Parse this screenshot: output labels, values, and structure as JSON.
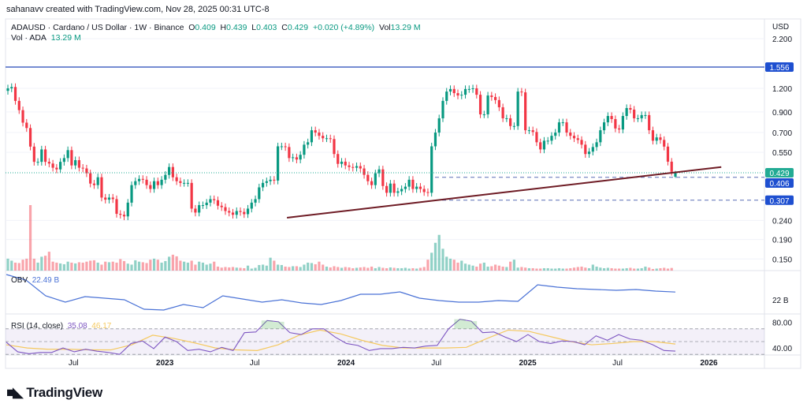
{
  "credit": "sahanavv created with TradingView.com, Nov 28, 2025 00:31 UTC-8",
  "legend": {
    "symbol": "ADAUSD · Cardano / US Dollar · 1W · Binance",
    "o_label": "O",
    "o": "0.409",
    "h_label": "H",
    "h": "0.439",
    "l_label": "L",
    "l": "0.403",
    "c_label": "C",
    "c": "0.429",
    "change": "+0.020 (+4.89%)",
    "vol_label": "Vol",
    "vol": "13.29 M",
    "vol_series_label": "Vol · ADA",
    "vol_series_value": "13.29 M"
  },
  "obv": {
    "label": "OBV",
    "value": "22.49 B",
    "axis_tick": "22 B"
  },
  "rsi": {
    "label": "RSI (14, close)",
    "value": "35.08",
    "ma_value": "46.17",
    "ticks": [
      "80.00",
      "40.00"
    ]
  },
  "currency": "USD",
  "logo": "TradingView",
  "colors": {
    "up": "#089981",
    "down": "#f23645",
    "obv": "#4a72d6",
    "rsi": "#7e57c2",
    "rsi_ma": "#f5c960",
    "hline": "#2448b8",
    "trendline": "#6e1b24",
    "last_price": "#22ab94"
  },
  "chart_data": {
    "type": "candlestick",
    "interval": "1W",
    "scale": "log",
    "ylim": [
      0.13,
      2.4
    ],
    "price_ticks": [
      "2.200",
      "1.200",
      "0.900",
      "0.700",
      "0.550",
      "0.240",
      "0.190",
      "0.150"
    ],
    "time_ticks": [
      {
        "label": "Jul",
        "date": "2022-07-01",
        "bold": false
      },
      {
        "label": "2023",
        "date": "2023-01-01",
        "bold": true
      },
      {
        "label": "Jul",
        "date": "2023-07-01",
        "bold": false
      },
      {
        "label": "2024",
        "date": "2024-01-01",
        "bold": true
      },
      {
        "label": "Jul",
        "date": "2024-07-01",
        "bold": false
      },
      {
        "label": "2025",
        "date": "2025-01-01",
        "bold": true
      },
      {
        "label": "Jul",
        "date": "2025-07-01",
        "bold": false
      },
      {
        "label": "2026",
        "date": "2026-01-01",
        "bold": true
      }
    ],
    "x_range": [
      "2022-02-14",
      "2026-02-28"
    ],
    "last_candle": {
      "open": 0.409,
      "high": 0.439,
      "low": 0.403,
      "close": 0.429
    },
    "closes": [
      1.2,
      1.22,
      1.03,
      0.92,
      0.79,
      0.74,
      0.59,
      0.49,
      0.49,
      0.57,
      0.49,
      0.48,
      0.456,
      0.447,
      0.49,
      0.513,
      0.565,
      0.469,
      0.5,
      0.456,
      0.452,
      0.426,
      0.376,
      0.369,
      0.406,
      0.317,
      0.309,
      0.317,
      0.311,
      0.26,
      0.257,
      0.252,
      0.298,
      0.369,
      0.387,
      0.398,
      0.394,
      0.369,
      0.352,
      0.387,
      0.369,
      0.394,
      0.418,
      0.46,
      0.406,
      0.387,
      0.379,
      0.379,
      0.379,
      0.277,
      0.264,
      0.289,
      0.289,
      0.298,
      0.311,
      0.307,
      0.287,
      0.282,
      0.269,
      0.264,
      0.257,
      0.269,
      0.266,
      0.259,
      0.277,
      0.298,
      0.311,
      0.359,
      0.379,
      0.387,
      0.394,
      0.39,
      0.592,
      0.592,
      0.587,
      0.513,
      0.518,
      0.504,
      0.534,
      0.604,
      0.622,
      0.72,
      0.7,
      0.673,
      0.653,
      0.653,
      0.647,
      0.539,
      0.478,
      0.491,
      0.469,
      0.46,
      0.456,
      0.465,
      0.452,
      0.418,
      0.387,
      0.369,
      0.426,
      0.447,
      0.365,
      0.336,
      0.376,
      0.336,
      0.342,
      0.352,
      0.362,
      0.394,
      0.352,
      0.362,
      0.352,
      0.339,
      0.336,
      0.592,
      0.7,
      0.833,
      1.03,
      1.154,
      1.19,
      1.132,
      1.1,
      1.11,
      1.19,
      1.19,
      1.2,
      1.11,
      0.874,
      0.874,
      1.1,
      1.08,
      1.04,
      0.953,
      0.833,
      0.833,
      0.758,
      0.758,
      1.154,
      1.143,
      0.72,
      0.72,
      0.705,
      0.622,
      0.57,
      0.634,
      0.634,
      0.673,
      0.7,
      0.793,
      0.793,
      0.7,
      0.673,
      0.653,
      0.64,
      0.604,
      0.539,
      0.555,
      0.587,
      0.622,
      0.72,
      0.793,
      0.857,
      0.825,
      0.736,
      0.727,
      0.857,
      0.944,
      0.926,
      0.833,
      0.833,
      0.866,
      0.866,
      0.72,
      0.634,
      0.66,
      0.64,
      0.59,
      0.491,
      0.434,
      0.429
    ],
    "volumes_m": [
      60,
      50,
      40,
      38,
      55,
      60,
      330,
      60,
      40,
      70,
      75,
      95,
      45,
      40,
      36,
      32,
      45,
      40,
      36,
      42,
      40,
      45,
      50,
      52,
      40,
      30,
      45,
      42,
      45,
      40,
      58,
      48,
      35,
      30,
      52,
      45,
      42,
      38,
      55,
      60,
      55,
      40,
      48,
      70,
      80,
      72,
      50,
      45,
      40,
      50,
      30,
      45,
      40,
      30,
      35,
      45,
      20,
      15,
      18,
      16,
      18,
      15,
      14,
      12,
      25,
      10,
      14,
      28,
      30,
      25,
      65,
      50,
      30,
      28,
      20,
      18,
      22,
      22,
      18,
      30,
      40,
      38,
      32,
      45,
      30,
      20,
      16,
      22,
      18,
      14,
      18,
      16,
      12,
      14,
      16,
      18,
      14,
      20,
      12,
      18,
      14,
      12,
      16,
      14,
      12,
      12,
      14,
      10,
      12,
      10,
      14,
      18,
      55,
      90,
      140,
      180,
      110,
      70,
      60,
      55,
      40,
      50,
      35,
      30,
      25,
      20,
      35,
      40,
      20,
      22,
      30,
      25,
      20,
      18,
      45,
      55,
      15,
      18,
      15,
      12,
      12,
      10,
      10,
      12,
      12,
      10,
      10,
      12,
      10,
      10,
      12,
      15,
      18,
      20,
      15,
      12,
      30,
      20,
      15,
      12,
      14,
      12,
      10,
      10,
      10,
      12,
      14,
      10,
      10,
      12,
      20,
      15,
      8,
      10,
      12,
      14,
      10,
      13.29
    ],
    "horizontal_lines": [
      {
        "price": 1.556,
        "label": "1.556",
        "style": "solid"
      },
      {
        "price": 0.406,
        "label": "0.406",
        "style": "dashed"
      },
      {
        "price": 0.307,
        "label": "0.307",
        "style": "dashed"
      }
    ],
    "last_price": {
      "price": 0.429,
      "label": "0.429"
    },
    "trendline": [
      {
        "date": "2023-09-04",
        "price": 0.248
      },
      {
        "date": "2026-01-26",
        "price": 0.46
      }
    ],
    "obv_b": [
      23.6,
      23.25,
      22.25,
      21.85,
      22.2,
      22.1,
      22.0,
      21.4,
      21.35,
      21.7,
      21.5,
      22.25,
      22.05,
      21.85,
      22.0,
      21.8,
      21.7,
      21.95,
      22.35,
      22.35,
      22.5,
      22.1,
      21.95,
      21.85,
      21.85,
      21.95,
      21.9,
      22.95,
      22.8,
      22.7,
      22.65,
      22.6,
      22.65,
      22.55,
      22.49
    ],
    "rsi_values": [
      49,
      34,
      31,
      33,
      33,
      40,
      34,
      38,
      35,
      33,
      30,
      47,
      51,
      39,
      57,
      50,
      36,
      38,
      34,
      41,
      36,
      64,
      65,
      83,
      81,
      64,
      61,
      70,
      70,
      57,
      47,
      44,
      36,
      39,
      39,
      41,
      40,
      43,
      44,
      70,
      85,
      82,
      64,
      65,
      57,
      50,
      61,
      50,
      47,
      51,
      50,
      45,
      59,
      52,
      61,
      54,
      52,
      45,
      36,
      35.08
    ],
    "rsi_ma": [
      45,
      40,
      38,
      38,
      37,
      37,
      45,
      60,
      55,
      48,
      40,
      37,
      36,
      45,
      60,
      68,
      62,
      52,
      44,
      40,
      40,
      40,
      41,
      55,
      68,
      66,
      58,
      50,
      45,
      47,
      50,
      50,
      46.17
    ],
    "rsi_bands": [
      70,
      50,
      30
    ]
  }
}
